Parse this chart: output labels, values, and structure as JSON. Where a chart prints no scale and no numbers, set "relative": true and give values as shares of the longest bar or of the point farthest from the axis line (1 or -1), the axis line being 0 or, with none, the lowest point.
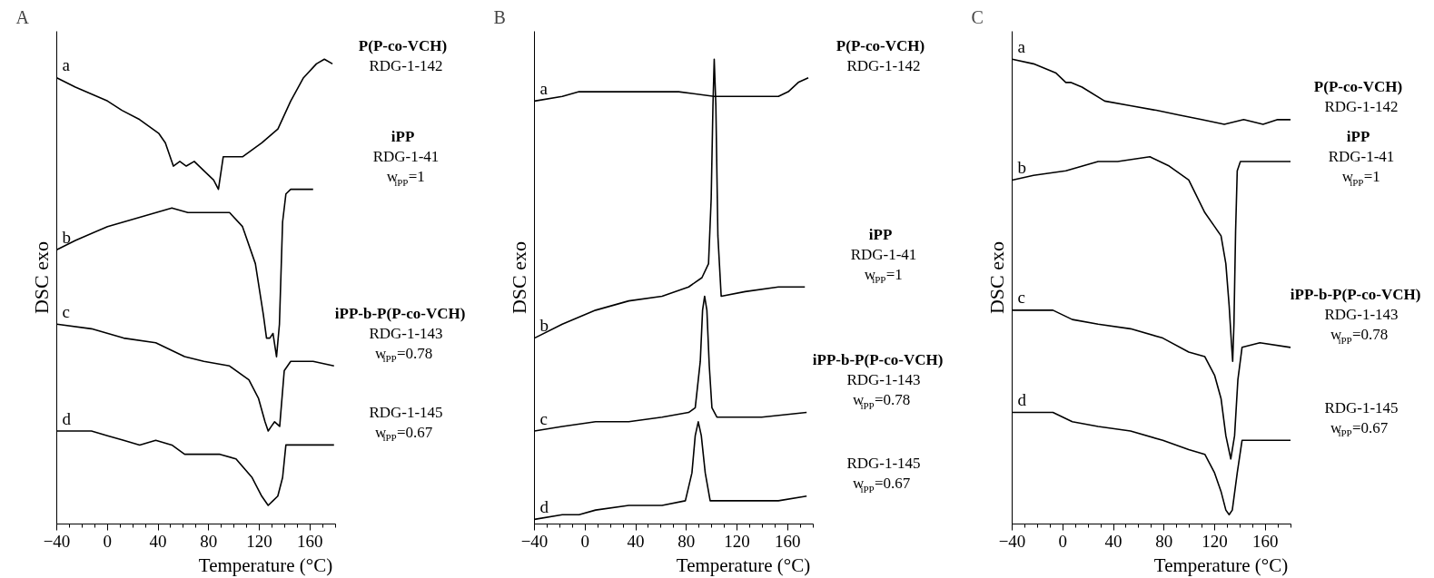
{
  "chart_data": [
    {
      "type": "line",
      "title": "A",
      "xlabel": "Temperature (°C)",
      "ylabel": "DSC exo",
      "relative": true,
      "tick_labels": "x",
      "xlim": [
        -40,
        180
      ],
      "xticks": [
        -40,
        0,
        40,
        80,
        120,
        160
      ],
      "series": [
        {
          "name": "a",
          "color": "#000000",
          "x": [
            -40,
            -25.3,
            0.1,
            11.5,
            25.5,
            40.7,
            45.8,
            52.1,
            57.2,
            62.3,
            68.6,
            76.2,
            83.9,
            87.7,
            91.5,
            96.6,
            106.7,
            122,
            134.7,
            144.8,
            154.9,
            165.1,
            171.4,
            177.8
          ],
          "values": [
            0.96,
            0.94,
            0.91,
            0.89,
            0.87,
            0.84,
            0.82,
            0.77,
            0.78,
            0.77,
            0.78,
            0.76,
            0.74,
            0.72,
            0.79,
            0.79,
            0.79,
            0.82,
            0.85,
            0.91,
            0.96,
            0.99,
            1,
            0.99
          ]
        },
        {
          "name": "b",
          "color": "#000000",
          "x": [
            -40,
            -25.3,
            0.1,
            25.5,
            50.9,
            63.6,
            76.2,
            96.5,
            106.7,
            116.9,
            123.2,
            125.7,
            128.3,
            130.8,
            133.6,
            135.9,
            138.4,
            141,
            144.8,
            162.5
          ],
          "values": [
            0.59,
            0.61,
            0.64,
            0.66,
            0.68,
            0.67,
            0.67,
            0.67,
            0.64,
            0.56,
            0.45,
            0.4,
            0.4,
            0.41,
            0.36,
            0.43,
            0.65,
            0.71,
            0.72,
            0.72
          ]
        },
        {
          "name": "c",
          "color": "#000000",
          "x": [
            -40,
            -12.6,
            12.8,
            38.2,
            61,
            76.2,
            96.5,
            111.8,
            119.4,
            124.5,
            127,
            129.5,
            132.1,
            136.1,
            139.7,
            144.8,
            162.5,
            179
          ],
          "values": [
            0.43,
            0.42,
            0.4,
            0.39,
            0.36,
            0.35,
            0.34,
            0.31,
            0.27,
            0.22,
            0.2,
            0.21,
            0.22,
            0.21,
            0.33,
            0.35,
            0.35,
            0.34
          ]
        },
        {
          "name": "d",
          "color": "#000000",
          "x": [
            -40,
            -12.6,
            0.1,
            12.8,
            25.5,
            38.2,
            50.9,
            61,
            76.2,
            88.9,
            101.6,
            114.3,
            121.9,
            127,
            130.8,
            134.6,
            138.4,
            141,
            144.8,
            179
          ],
          "values": [
            0.2,
            0.2,
            0.19,
            0.18,
            0.17,
            0.18,
            0.17,
            0.15,
            0.15,
            0.15,
            0.14,
            0.1,
            0.06,
            0.04,
            0.05,
            0.06,
            0.1,
            0.17,
            0.17,
            0.17
          ]
        }
      ],
      "annotations": [
        "P(P-co-VCH)",
        "RDG-1-142",
        "iPP",
        "RDG-1-41",
        "w$_{iPP}$=1",
        "iPP-b-P(P-co-VCH)",
        "RDG-1-143",
        "w$_{iPP}$=0.78",
        "RDG-1-145",
        "w$_{iPP}$=0.67"
      ]
    },
    {
      "type": "line",
      "title": "B",
      "xlabel": "Temperature (°C)",
      "ylabel": "DSC exo",
      "relative": true,
      "tick_labels": "x",
      "xlim": [
        -40,
        180
      ],
      "xticks": [
        -40,
        0,
        40,
        80,
        120,
        160
      ],
      "series": [
        {
          "name": "a",
          "color": "#000000",
          "x": [
            -40,
            -18,
            -4.8,
            21.4,
            42.4,
            73.9,
            102,
            126.4,
            152.7,
            160.5,
            168.4,
            176.3
          ],
          "values": [
            0.91,
            0.92,
            0.93,
            0.93,
            0.93,
            0.93,
            0.92,
            0.92,
            0.92,
            0.93,
            0.95,
            0.96
          ]
        },
        {
          "name": "b",
          "color": "#000000",
          "x": [
            -40,
            -18,
            8.3,
            34.5,
            60.8,
            81.8,
            92.3,
            97.5,
            99.6,
            101,
            102,
            103.3,
            104.9,
            107.5,
            126.4,
            152.7,
            173.6
          ],
          "values": [
            0.4,
            0.43,
            0.46,
            0.48,
            0.49,
            0.51,
            0.53,
            0.56,
            0.7,
            0.9,
            1,
            0.9,
            0.62,
            0.49,
            0.5,
            0.51,
            0.51
          ]
        },
        {
          "name": "c",
          "color": "#000000",
          "x": [
            -40,
            -18,
            8.3,
            34.5,
            60.8,
            81.8,
            87,
            91,
            92.8,
            94.4,
            96.2,
            98.1,
            100.2,
            104.1,
            139.5,
            175
          ],
          "values": [
            0.2,
            0.21,
            0.22,
            0.22,
            0.23,
            0.24,
            0.25,
            0.35,
            0.46,
            0.49,
            0.46,
            0.34,
            0.25,
            0.23,
            0.23,
            0.24
          ]
        },
        {
          "name": "d",
          "color": "#000000",
          "x": [
            -40,
            -18,
            -4.8,
            8.3,
            34.5,
            60.8,
            79.2,
            84.4,
            87,
            89.4,
            91.8,
            94.9,
            98.8,
            113.3,
            152.7,
            175
          ],
          "values": [
            0.01,
            0.02,
            0.02,
            0.03,
            0.04,
            0.04,
            0.05,
            0.11,
            0.19,
            0.22,
            0.19,
            0.11,
            0.05,
            0.05,
            0.05,
            0.06
          ]
        }
      ],
      "annotations": [
        "P(P-co-VCH)",
        "RDG-1-142",
        "iPP",
        "RDG-1-41",
        "w$_{iPP}$=1",
        "iPP-b-P(P-co-VCH)",
        "RDG-1-143",
        "w$_{iPP}$=0.78",
        "RDG-1-145",
        "w$_{iPP}$=0.67"
      ]
    },
    {
      "type": "line",
      "title": "C",
      "xlabel": "Temperature (°C)",
      "ylabel": "DSC exo",
      "relative": true,
      "tick_labels": "x",
      "xlim": [
        -40,
        180
      ],
      "xticks": [
        -40,
        0,
        40,
        80,
        120,
        160
      ],
      "series": [
        {
          "name": "a",
          "color": "#000000",
          "x": [
            -40,
            -23.1,
            -5.3,
            2.4,
            6.2,
            15.2,
            33.1,
            53.5,
            73.9,
            91.8,
            109.7,
            127.6,
            142.9,
            158.2,
            169.7,
            179.9
          ],
          "values": [
            1,
            0.99,
            0.97,
            0.95,
            0.95,
            0.94,
            0.91,
            0.9,
            0.89,
            0.88,
            0.87,
            0.86,
            0.87,
            0.86,
            0.87,
            0.87
          ]
        },
        {
          "name": "b",
          "color": "#000000",
          "x": [
            -40,
            -23.1,
            2.4,
            27.9,
            43.3,
            68.8,
            84.1,
            99.5,
            112.2,
            119.9,
            125,
            128.8,
            131.4,
            133.2,
            134.2,
            135.2,
            136.5,
            137.8,
            140.3,
            155.7,
            179.9
          ],
          "values": [
            0.74,
            0.75,
            0.76,
            0.78,
            0.78,
            0.79,
            0.77,
            0.74,
            0.67,
            0.64,
            0.62,
            0.56,
            0.47,
            0.39,
            0.35,
            0.43,
            0.63,
            0.76,
            0.78,
            0.78,
            0.78
          ]
        },
        {
          "name": "c",
          "color": "#000000",
          "x": [
            -40,
            -7.8,
            7.5,
            27.9,
            53.5,
            79,
            99.5,
            112.2,
            119.9,
            125,
            128.8,
            132.7,
            135.7,
            138.3,
            141.6,
            155.7,
            179.9
          ],
          "values": [
            0.46,
            0.46,
            0.44,
            0.43,
            0.42,
            0.4,
            0.37,
            0.36,
            0.32,
            0.27,
            0.19,
            0.14,
            0.19,
            0.31,
            0.38,
            0.39,
            0.38
          ]
        },
        {
          "name": "d",
          "color": "#000000",
          "x": [
            -40,
            -7.8,
            7.5,
            27.9,
            53.5,
            79,
            99.5,
            112.2,
            119.9,
            125,
            128.8,
            131.4,
            133.9,
            137.8,
            141.6,
            155.7,
            179.9
          ],
          "values": [
            0.24,
            0.24,
            0.22,
            0.21,
            0.2,
            0.18,
            0.16,
            0.15,
            0.11,
            0.07,
            0.03,
            0.02,
            0.03,
            0.11,
            0.18,
            0.18,
            0.18
          ]
        }
      ],
      "annotations": [
        "P(P-co-VCH)",
        "RDG-1-142",
        "iPP",
        "RDG-1-41",
        "w$_{iPP}$=1",
        "iPP-b-P(P-co-VCH)",
        "RDG-1-143",
        "w$_{iPP}$=0.78",
        "RDG-1-145",
        "w$_{iPP}$=0.67"
      ]
    }
  ]
}
